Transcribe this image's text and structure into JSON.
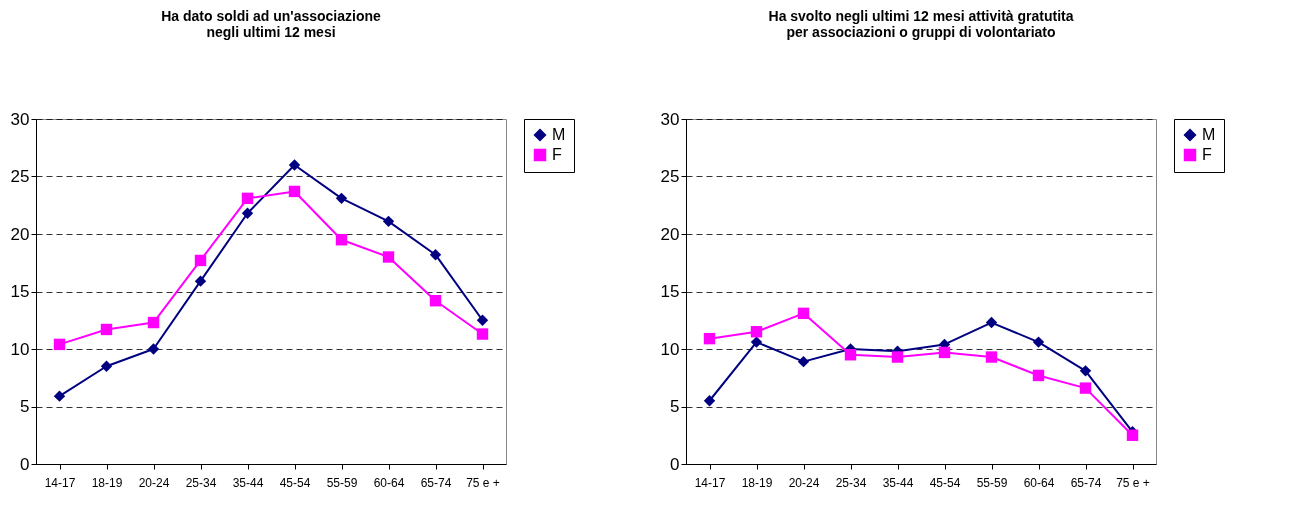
{
  "chart_data": [
    {
      "type": "line",
      "title": "Ha dato soldi ad un'associazione negli ultimi 12 mesi",
      "categories": [
        "14-17",
        "18-19",
        "20-24",
        "25-34",
        "35-44",
        "45-54",
        "55-59",
        "60-64",
        "65-74",
        "75 e +"
      ],
      "series": [
        {
          "name": "M",
          "color": "#000080",
          "marker": "diamond",
          "values": [
            5.9,
            8.5,
            10.0,
            15.9,
            21.8,
            26.0,
            23.1,
            21.1,
            18.2,
            12.5
          ]
        },
        {
          "name": "F",
          "color": "#ff00ff",
          "marker": "square",
          "values": [
            10.4,
            11.7,
            12.3,
            17.7,
            23.1,
            23.7,
            19.5,
            18.0,
            14.2,
            11.3
          ]
        }
      ],
      "ylim": [
        0,
        30
      ],
      "yticks": [
        0,
        5,
        10,
        15,
        20,
        25,
        30
      ],
      "grid": "y",
      "legend": "right"
    },
    {
      "type": "line",
      "title": "Ha svolto negli ultimi 12 mesi attività gratutita per associazioni o gruppi di volontariato",
      "categories": [
        "14-17",
        "18-19",
        "20-24",
        "25-34",
        "35-44",
        "45-54",
        "55-59",
        "60-64",
        "65-74",
        "75 e +"
      ],
      "series": [
        {
          "name": "M",
          "color": "#000080",
          "marker": "diamond",
          "values": [
            5.5,
            10.6,
            8.9,
            10.0,
            9.8,
            10.4,
            12.3,
            10.6,
            8.1,
            2.8
          ]
        },
        {
          "name": "F",
          "color": "#ff00ff",
          "marker": "square",
          "values": [
            10.9,
            11.5,
            13.1,
            9.5,
            9.3,
            9.7,
            9.3,
            7.7,
            6.6,
            2.5
          ]
        }
      ],
      "ylim": [
        0,
        30
      ],
      "yticks": [
        0,
        5,
        10,
        15,
        20,
        25,
        30
      ],
      "grid": "y",
      "legend": "right"
    }
  ]
}
